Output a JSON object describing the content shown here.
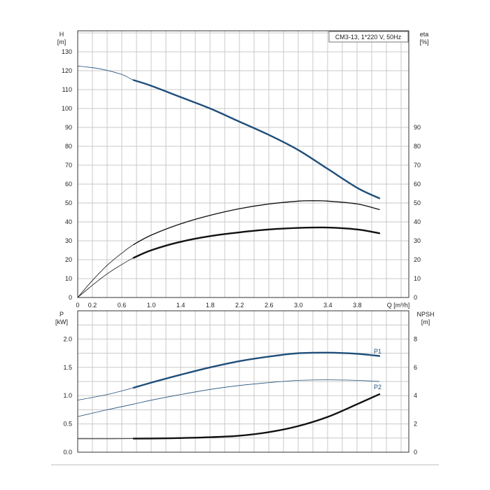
{
  "chart_data": [
    {
      "type": "line",
      "title": "CM3-13, 1*220 V, 50Hz",
      "xlabel": "Q [m³/h]",
      "ylabel_main": "H",
      "ylabel_unit": "[m]",
      "y2label_main": "eta",
      "y2label_unit": "[%]",
      "xlim": [
        0,
        4.5
      ],
      "ylim": [
        0,
        150
      ],
      "xticks": [
        "0",
        "0.2",
        "0.6",
        "1.0",
        "1.4",
        "1.8",
        "2.2",
        "2.6",
        "3.0",
        "3.4",
        "3.8"
      ],
      "yticks": [
        "0",
        "10",
        "20",
        "30",
        "40",
        "50",
        "60",
        "70",
        "80",
        "90",
        "100",
        "110",
        "120",
        "130"
      ],
      "y2ticks": [
        "0",
        "10",
        "20",
        "30",
        "40",
        "50",
        "60",
        "70",
        "80",
        "90"
      ],
      "grid": true,
      "series": [
        {
          "color": "#1f4e7a",
          "x": [
            0,
            0.3,
            0.6,
            0.76,
            1.0,
            1.4,
            1.8,
            2.2,
            2.6,
            3.0,
            3.4,
            3.8,
            4.1
          ],
          "values": [
            122.5,
            121,
            118,
            115,
            112,
            106,
            100,
            93,
            86,
            78,
            68,
            58,
            52.5
          ],
          "operating_from": 0.76
        },
        {
          "color": "#111111",
          "x": [
            0,
            0.2,
            0.4,
            0.6,
            0.76,
            1.0,
            1.4,
            1.8,
            2.2,
            2.6,
            3.0,
            3.2,
            3.4,
            3.8,
            4.1
          ],
          "values": [
            0,
            9,
            17,
            23.5,
            28,
            33,
            39,
            43.5,
            47,
            49.5,
            51,
            51.2,
            51,
            49.5,
            46.5
          ],
          "operating_from": 0.76,
          "thin": true
        },
        {
          "color": "#111111",
          "x": [
            0,
            0.2,
            0.4,
            0.6,
            0.76,
            1.0,
            1.4,
            1.8,
            2.2,
            2.6,
            3.0,
            3.4,
            3.8,
            4.1
          ],
          "values": [
            0,
            6.5,
            12.5,
            17.5,
            21,
            25,
            29.5,
            32.5,
            34.5,
            36,
            36.8,
            37,
            36,
            34
          ],
          "operating_from": 0.76
        }
      ]
    },
    {
      "type": "line",
      "ylabel_main": "P",
      "ylabel_unit": "[kW]",
      "y2label_main": "NPSH",
      "y2label_unit": "[m]",
      "xlim": [
        0,
        4.5
      ],
      "ylim": [
        0,
        2.5
      ],
      "y2lim": [
        0,
        10
      ],
      "yticks": [
        "0.0",
        "0.5",
        "1.0",
        "1.5",
        "2.0"
      ],
      "y2ticks": [
        "0",
        "2",
        "4",
        "6",
        "8"
      ],
      "grid": true,
      "series": [
        {
          "name": "P1",
          "color": "#1f4e7a",
          "x": [
            0,
            0.4,
            0.76,
            1.0,
            1.4,
            1.8,
            2.2,
            2.6,
            3.0,
            3.4,
            3.8,
            4.1
          ],
          "values": [
            0.92,
            1.02,
            1.14,
            1.23,
            1.37,
            1.5,
            1.61,
            1.69,
            1.75,
            1.76,
            1.74,
            1.7
          ],
          "operating_from": 0.76
        },
        {
          "name": "P2",
          "color": "#1f4e7a",
          "thin": true,
          "x": [
            0,
            0.4,
            0.76,
            1.0,
            1.4,
            1.8,
            2.2,
            2.6,
            3.0,
            3.4,
            3.8,
            4.1
          ],
          "values": [
            0.63,
            0.75,
            0.85,
            0.92,
            1.02,
            1.11,
            1.18,
            1.23,
            1.27,
            1.28,
            1.27,
            1.25
          ]
        },
        {
          "color": "#111111",
          "axis": "right",
          "x": [
            0,
            0.4,
            0.76,
            1.0,
            1.4,
            1.8,
            2.2,
            2.6,
            3.0,
            3.4,
            3.8,
            4.1
          ],
          "values": [
            0.95,
            0.95,
            0.96,
            0.97,
            1.0,
            1.06,
            1.17,
            1.42,
            1.85,
            2.5,
            3.4,
            4.1
          ],
          "operating_from": 0.76
        }
      ]
    }
  ]
}
